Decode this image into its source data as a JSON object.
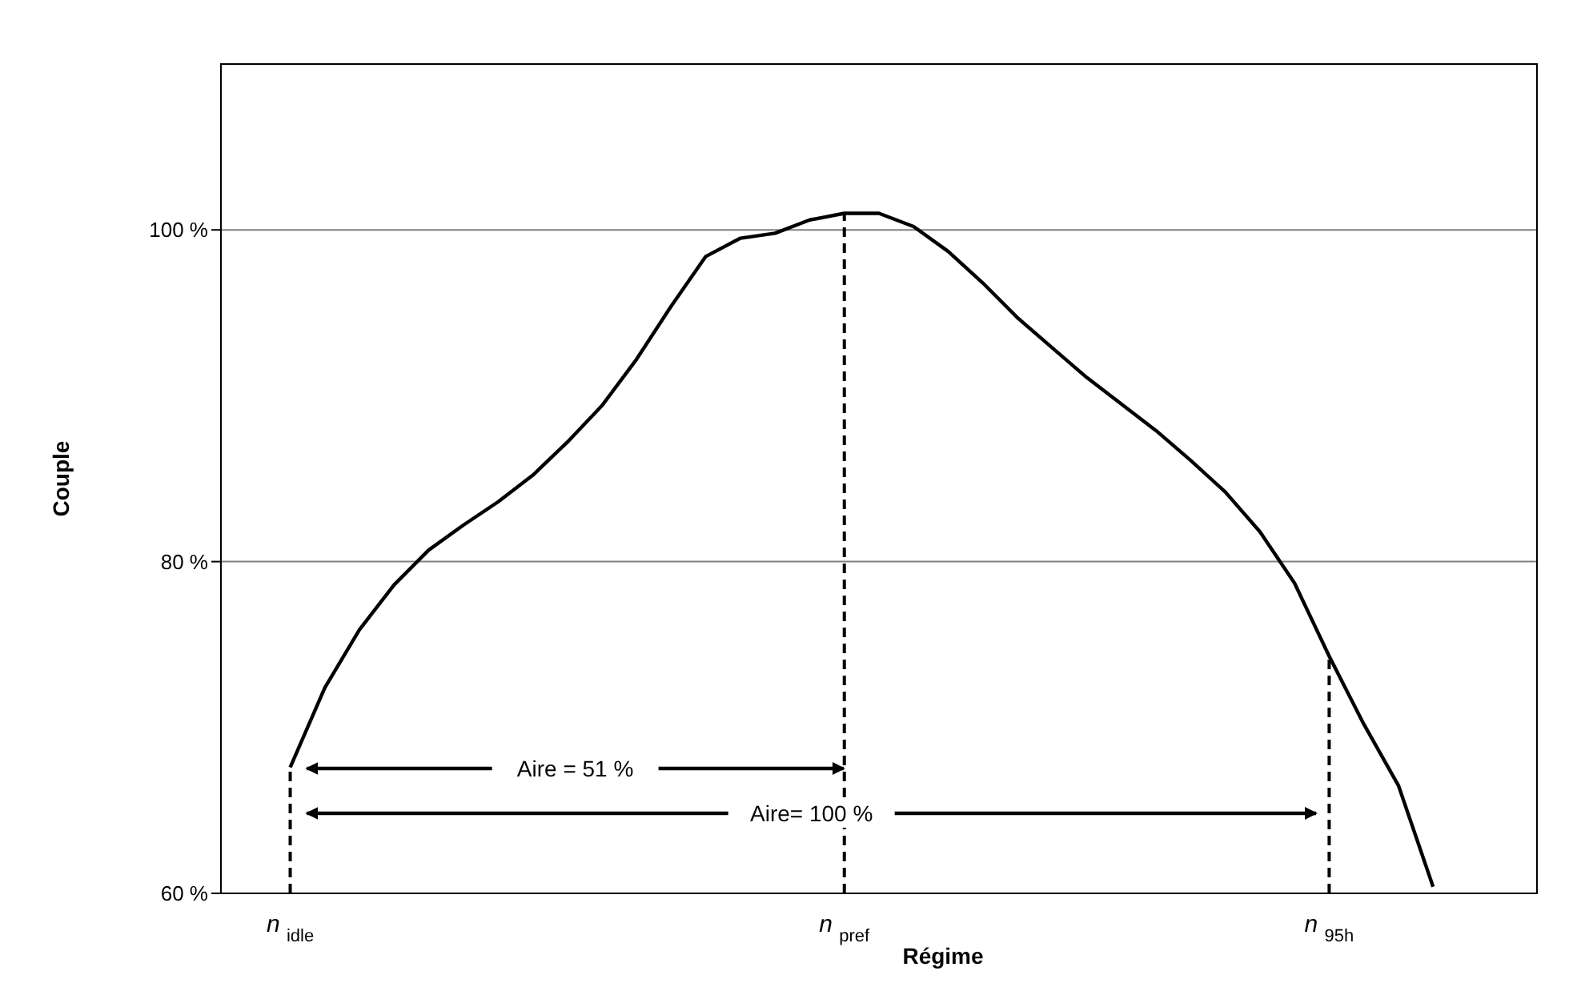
{
  "chart_data": {
    "type": "line",
    "xlabel": "Régime",
    "ylabel": "Couple",
    "categories": [
      null,
      null,
      "n$_{idle}$",
      null,
      null,
      null,
      null,
      null,
      null,
      null,
      null,
      null,
      null,
      null,
      null,
      null,
      null,
      null,
      "n$_{pref}$",
      null,
      null,
      null,
      null,
      null,
      null,
      null,
      null,
      null,
      null,
      null,
      null,
      null,
      "n$_{95h}$",
      null,
      null,
      null,
      null,
      null,
      null
    ],
    "series": [
      {
        "color": "#000000",
        "values": [
          null,
          null,
          67.6,
          72.4,
          75.9,
          78.6,
          80.7,
          82.2,
          83.6,
          85.2,
          87.2,
          89.4,
          92.2,
          95.4,
          98.4,
          99.5,
          99.8,
          100.6,
          101.0,
          101.0,
          100.2,
          98.7,
          96.8,
          94.7,
          92.9,
          91.1,
          89.5,
          87.9,
          86.1,
          84.2,
          81.8,
          78.7,
          74.3,
          70.2,
          66.5,
          60.4,
          null,
          null,
          null
        ]
      }
    ],
    "ylim": [
      60,
      110
    ],
    "yticks": [
      {
        "value": 60,
        "label": "60 %"
      },
      {
        "value": 80,
        "label": "80 %"
      },
      {
        "value": 100,
        "label": "100 %"
      }
    ],
    "grid": "y",
    "marker": "none",
    "ref_lines": [
      {
        "axis": "x",
        "value": "n$_{idle}$",
        "line_style": "dashed"
      },
      {
        "axis": "x",
        "value": "n$_{pref}$",
        "line_style": "dashed"
      },
      {
        "axis": "x",
        "value": "n$_{95h}$",
        "line_style": "dashed"
      }
    ],
    "annotations": [
      "Aire = 51 %",
      "Aire= 100 %"
    ]
  }
}
